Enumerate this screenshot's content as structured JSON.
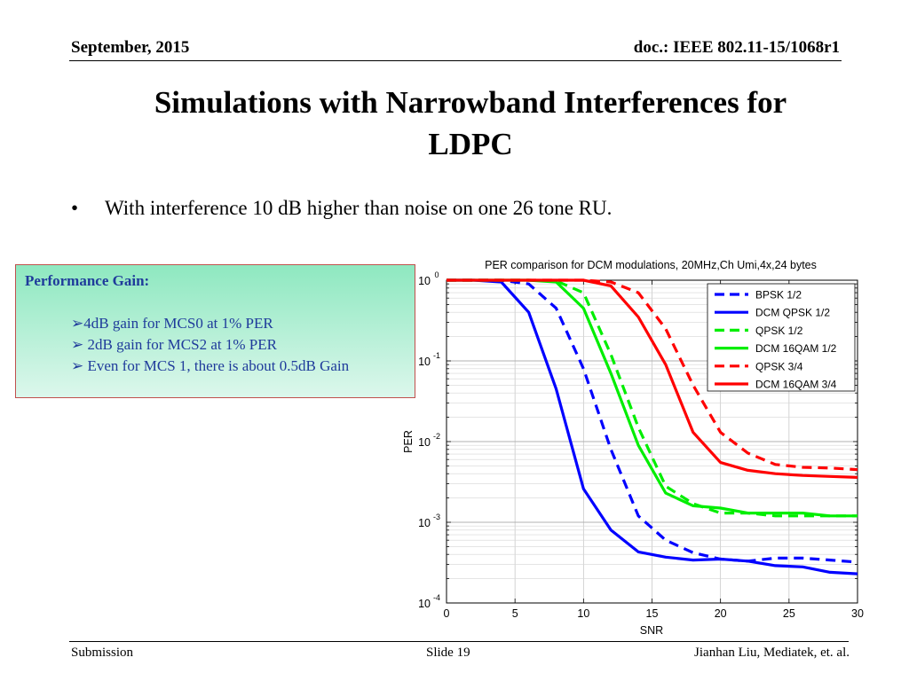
{
  "header": {
    "date": "September, 2015",
    "doc": "doc.: IEEE 802.11-15/1068r1"
  },
  "title_line1": "Simulations with Narrowband Interferences for",
  "title_line2": "LDPC",
  "bullet": {
    "marker": "•",
    "text": "With interference 10 dB higher than noise on one 26 tone RU."
  },
  "gain_box": {
    "title": "Performance Gain:",
    "items": [
      "➢4dB gain for MCS0 at 1% PER",
      "➢ 2dB gain for MCS2 at 1% PER",
      "➢  Even for MCS 1, there is about 0.5dB Gain"
    ]
  },
  "footer": {
    "left": "Submission",
    "center": "Slide 19",
    "right": "Jianhan Liu,  Mediatek, et. al."
  },
  "chart_data": {
    "type": "line",
    "title": "PER comparison for DCM modulations, 20MHz,Ch Umi,4x,24 bytes",
    "xlabel": "SNR",
    "ylabel": "PER",
    "xlim": [
      0,
      30
    ],
    "ylim": [
      0.0001,
      1
    ],
    "yscale": "log",
    "grid": true,
    "legend_position": "top-right",
    "xticks": [
      "0",
      "5",
      "10",
      "15",
      "20",
      "25",
      "30"
    ],
    "yticks": [
      {
        "base": "10",
        "exp": "0",
        "value": 1
      },
      {
        "base": "10",
        "exp": "-1",
        "value": 0.1
      },
      {
        "base": "10",
        "exp": "-2",
        "value": 0.01
      },
      {
        "base": "10",
        "exp": "-3",
        "value": 0.001
      },
      {
        "base": "10",
        "exp": "-4",
        "value": 0.0001
      }
    ],
    "x": [
      0,
      2,
      4,
      6,
      8,
      10,
      12,
      14,
      16,
      18,
      20,
      22,
      24,
      26,
      28,
      30
    ],
    "series": [
      {
        "name": "BPSK 1/2",
        "color": "#0000ff",
        "dash": true,
        "values": [
          1,
          1,
          1,
          0.9,
          0.45,
          0.08,
          0.008,
          0.0012,
          0.0006,
          0.00042,
          0.00035,
          0.00033,
          0.00036,
          0.00036,
          0.00034,
          0.00032
        ]
      },
      {
        "name": "DCM QPSK 1/2",
        "color": "#0000ff",
        "dash": false,
        "values": [
          1,
          1,
          0.95,
          0.4,
          0.045,
          0.0026,
          0.0008,
          0.00043,
          0.00037,
          0.00034,
          0.00035,
          0.00033,
          0.00029,
          0.00028,
          0.00024,
          0.00023
        ]
      },
      {
        "name": "QPSK 1/2",
        "color": "#00ee00",
        "dash": true,
        "values": [
          1,
          1,
          1,
          1,
          0.98,
          0.7,
          0.12,
          0.015,
          0.0028,
          0.0017,
          0.0013,
          0.0013,
          0.0012,
          0.0012,
          0.0012,
          0.0012
        ]
      },
      {
        "name": "DCM 16QAM 1/2",
        "color": "#00ee00",
        "dash": false,
        "values": [
          1,
          1,
          1,
          1,
          0.95,
          0.45,
          0.07,
          0.009,
          0.0023,
          0.0016,
          0.0015,
          0.0013,
          0.0013,
          0.0013,
          0.0012,
          0.0012
        ]
      },
      {
        "name": "QPSK 3/4",
        "color": "#ff0000",
        "dash": true,
        "values": [
          1,
          1,
          1,
          1,
          1,
          1,
          0.95,
          0.7,
          0.25,
          0.05,
          0.013,
          0.0072,
          0.0052,
          0.0048,
          0.0047,
          0.0045
        ]
      },
      {
        "name": "DCM 16QAM 3/4",
        "color": "#ff0000",
        "dash": false,
        "values": [
          1,
          1,
          1,
          1,
          1,
          1,
          0.85,
          0.35,
          0.09,
          0.013,
          0.0055,
          0.0044,
          0.004,
          0.0038,
          0.0037,
          0.0036
        ]
      }
    ]
  }
}
